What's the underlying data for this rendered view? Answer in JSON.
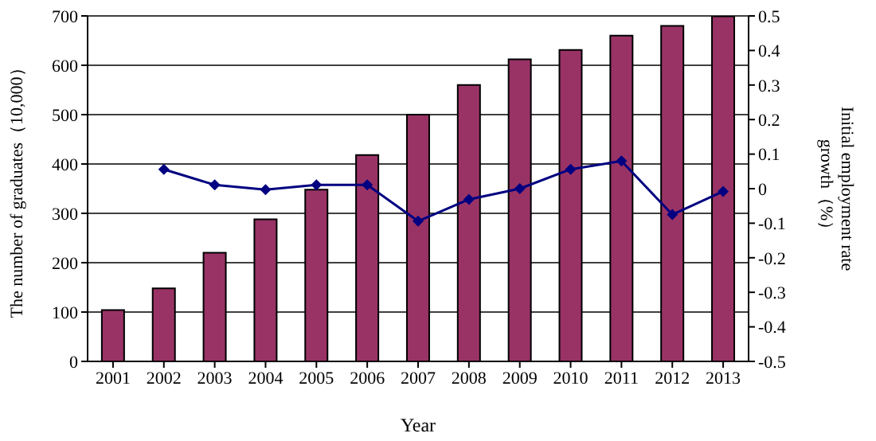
{
  "chart_data": {
    "type": "bar",
    "xlabel": "Year",
    "ylabel": "The number of graduates（10,000）",
    "y2label": "Initial employment rate growth（%）",
    "categories": [
      "2001",
      "2002",
      "2003",
      "2004",
      "2005",
      "2006",
      "2007",
      "2008",
      "2009",
      "2010",
      "2011",
      "2012",
      "2013"
    ],
    "series": [
      {
        "color": "#993366",
        "values": [
          104,
          148,
          220,
          288,
          348,
          418,
          500,
          560,
          612,
          631,
          660,
          680,
          699
        ]
      },
      {
        "type": "line",
        "axis": "y2",
        "color": "#000080",
        "values": [
          null,
          0.056,
          0.011,
          -0.003,
          0.011,
          0.011,
          -0.094,
          -0.031,
          0,
          0.056,
          0.08,
          -0.075,
          -0.008
        ]
      }
    ],
    "ylim": [
      0,
      700
    ],
    "yticks": [
      0,
      100,
      200,
      300,
      400,
      500,
      600,
      700
    ],
    "y2lim": [
      -0.5,
      0.5
    ],
    "y2ticks": [
      -0.5,
      -0.4,
      -0.3,
      -0.2,
      -0.1,
      0,
      0.1,
      0.2,
      0.3,
      0.4,
      0.5
    ],
    "grid": "y",
    "marker": "diamond",
    "legend": false
  }
}
